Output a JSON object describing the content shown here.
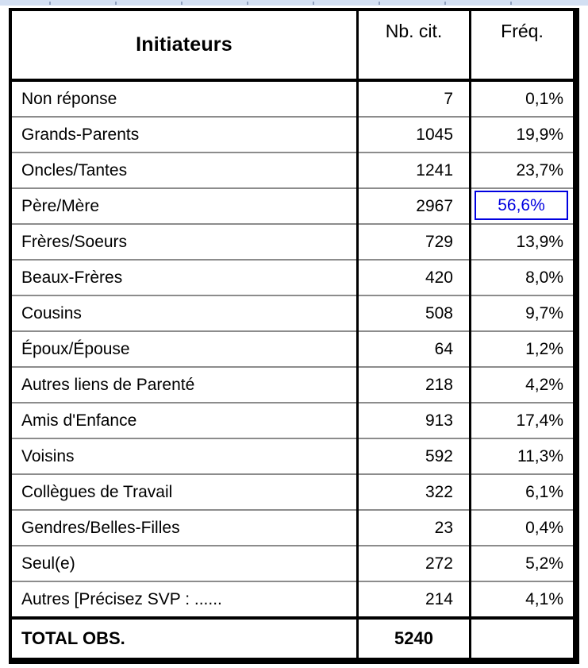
{
  "table": {
    "title": "Initiateurs",
    "columns": [
      "Nb. cit.",
      "Fréq."
    ],
    "rows": [
      {
        "label": "Non réponse",
        "count": "7",
        "freq": "0,1%"
      },
      {
        "label": "Grands-Parents",
        "count": "1045",
        "freq": "19,9%"
      },
      {
        "label": "Oncles/Tantes",
        "count": "1241",
        "freq": "23,7%"
      },
      {
        "label": "Père/Mère",
        "count": "2967",
        "freq": "56,6%",
        "highlighted": true
      },
      {
        "label": "Frères/Soeurs",
        "count": "729",
        "freq": "13,9%"
      },
      {
        "label": "Beaux-Frères",
        "count": "420",
        "freq": "8,0%"
      },
      {
        "label": "Cousins",
        "count": "508",
        "freq": "9,7%"
      },
      {
        "label": "Époux/Épouse",
        "count": "64",
        "freq": "1,2%"
      },
      {
        "label": "Autres liens de Parenté",
        "count": "218",
        "freq": "4,2%"
      },
      {
        "label": "Amis d'Enfance",
        "count": "913",
        "freq": "17,4%"
      },
      {
        "label": "Voisins",
        "count": "592",
        "freq": "11,3%"
      },
      {
        "label": "Collègues de Travail",
        "count": "322",
        "freq": "6,1%"
      },
      {
        "label": "Gendres/Belles-Filles",
        "count": "23",
        "freq": "0,4%"
      },
      {
        "label": "Seul(e)",
        "count": "272",
        "freq": "5,2%"
      },
      {
        "label": "Autres [Précisez SVP : ......",
        "count": "214",
        "freq": "4,1%"
      }
    ],
    "total": {
      "label": "TOTAL OBS.",
      "count": "5240",
      "freq": ""
    }
  },
  "colors": {
    "highlight_blue": "#0000e0",
    "row_separator_gray": "#8c8c8c",
    "border_black": "#000000",
    "ruler_strip_blue": "#d3dff2"
  }
}
